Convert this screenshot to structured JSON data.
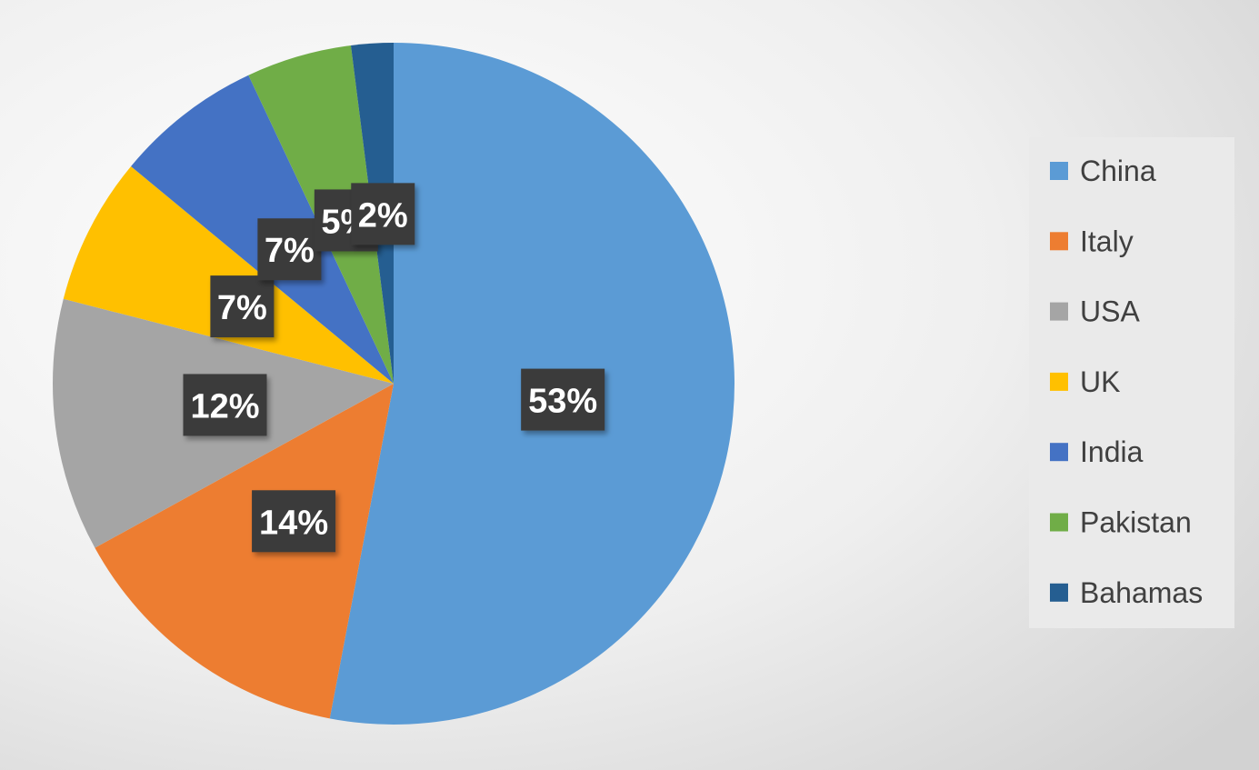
{
  "chart_data": {
    "type": "pie",
    "categories": [
      "China",
      "Italy",
      "USA",
      "UK",
      "India",
      "Pakistan",
      "Bahamas"
    ],
    "values": [
      53,
      14,
      12,
      7,
      7,
      5,
      2
    ],
    "value_labels": [
      "53%",
      "14%",
      "12%",
      "7%",
      "7%",
      "5%",
      "2%"
    ],
    "colors": [
      "#5b9bd5",
      "#ed7d31",
      "#a5a5a5",
      "#ffc000",
      "#4472c4",
      "#70ad47",
      "#255e91"
    ],
    "legend": "right"
  }
}
